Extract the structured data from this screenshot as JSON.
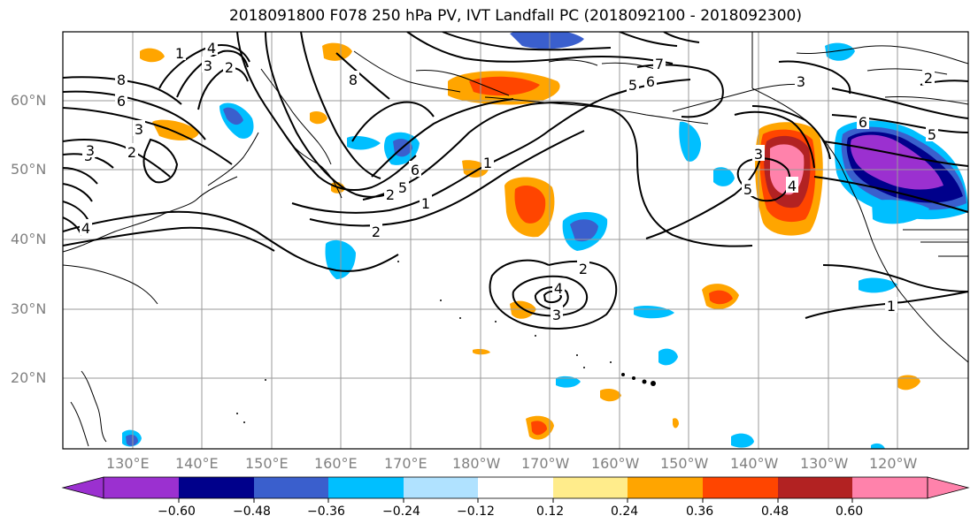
{
  "title": "2018091800 F078 250 hPa PV, IVT Landfall PC (2018092100 - 2018092300)",
  "lat_labels": [
    "60°N",
    "50°N",
    "40°N",
    "30°N",
    "20°N"
  ],
  "lat_values": [
    60,
    50,
    40,
    30,
    20
  ],
  "lon_labels": [
    "130°E",
    "140°E",
    "150°E",
    "160°E",
    "170°E",
    "180°W",
    "170°W",
    "160°W",
    "150°W",
    "140°W",
    "130°W",
    "120°W"
  ],
  "lon_values": [
    130,
    140,
    150,
    160,
    170,
    180,
    190,
    200,
    210,
    220,
    230,
    240
  ],
  "extent": {
    "lon": [
      120,
      250
    ],
    "lat": [
      10,
      70
    ]
  },
  "colorbar": {
    "ticks": [
      "−0.60",
      "−0.48",
      "−0.36",
      "−0.24",
      "−0.12",
      "0.12",
      "0.24",
      "0.36",
      "0.48",
      "0.60"
    ],
    "colors": [
      "#9b30d0",
      "#00008b",
      "#3a5fcd",
      "#00bfff",
      "#b0e2ff",
      "#ffffff",
      "#ffec8b",
      "#ffa500",
      "#ff4500",
      "#b22222",
      "#ff82ab"
    ]
  },
  "contour_labels": [
    "8",
    "6",
    "3",
    "4",
    "2",
    "3",
    "5",
    "4",
    "3",
    "2",
    "8",
    "1",
    "6",
    "5",
    "2",
    "2",
    "1",
    "7",
    "6",
    "5",
    "3",
    "6",
    "5",
    "3",
    "5",
    "4",
    "2",
    "4",
    "3",
    "2",
    "1",
    "1"
  ]
}
